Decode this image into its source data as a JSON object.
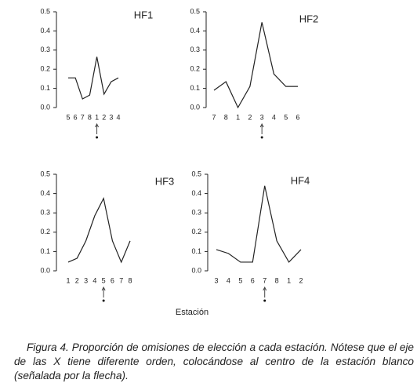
{
  "chart_data": [
    {
      "type": "line",
      "title": "HF1",
      "categories": [
        "5",
        "6",
        "7",
        "8",
        "1",
        "2",
        "3",
        "4"
      ],
      "values": [
        0.155,
        0.155,
        0.045,
        0.065,
        0.265,
        0.07,
        0.135,
        0.155
      ],
      "color": "#222222",
      "ylim": [
        0,
        0.5
      ],
      "yticks": [
        {
          "value": 0,
          "label": "0.0"
        },
        0.1,
        0.2,
        0.3,
        0.4,
        0.5
      ]
    },
    {
      "type": "line",
      "title": "HF2",
      "categories": [
        "7",
        "8",
        "1",
        "2",
        "3",
        "4",
        "5",
        "6"
      ],
      "values": [
        0.09,
        0.135,
        0,
        0.11,
        0.445,
        0.175,
        0.11,
        0.11
      ],
      "color": "#222222",
      "ylim": [
        0,
        0.5
      ],
      "yticks": [
        {
          "value": 0,
          "label": "0.0"
        },
        0.1,
        0.2,
        0.3,
        0.4,
        0.5
      ]
    },
    {
      "type": "line",
      "title": "HF3",
      "categories": [
        "1",
        "2",
        "3",
        "4",
        "5",
        "6",
        "7",
        "8"
      ],
      "values": [
        0.045,
        0.065,
        0.155,
        0.285,
        0.375,
        0.155,
        0.045,
        0.155
      ],
      "color": "#222222",
      "ylim": [
        0,
        0.5
      ],
      "yticks": [
        {
          "value": 0,
          "label": "0.0"
        },
        0.1,
        0.2,
        0.3,
        0.4,
        0.5
      ]
    },
    {
      "type": "line",
      "title": "HF4",
      "categories": [
        "3",
        "4",
        "5",
        "6",
        "7",
        "8",
        "1",
        "2"
      ],
      "values": [
        0.11,
        0.09,
        0.045,
        0.045,
        0.44,
        0.155,
        0.045,
        0.11
      ],
      "color": "#222222",
      "ylim": [
        0,
        0.5
      ],
      "yticks": [
        {
          "value": 0,
          "label": "0.0"
        },
        0.1,
        0.2,
        0.3,
        0.4,
        0.5
      ]
    }
  ],
  "xlabel": "Estación",
  "caption_label": "Figura 4.",
  "caption": "Proporción de omisiones de elección a cada estación. Nótese que el eje de las X tiene diferente orden, colocándose al centro de la estación blanco (señalada por la flecha)."
}
